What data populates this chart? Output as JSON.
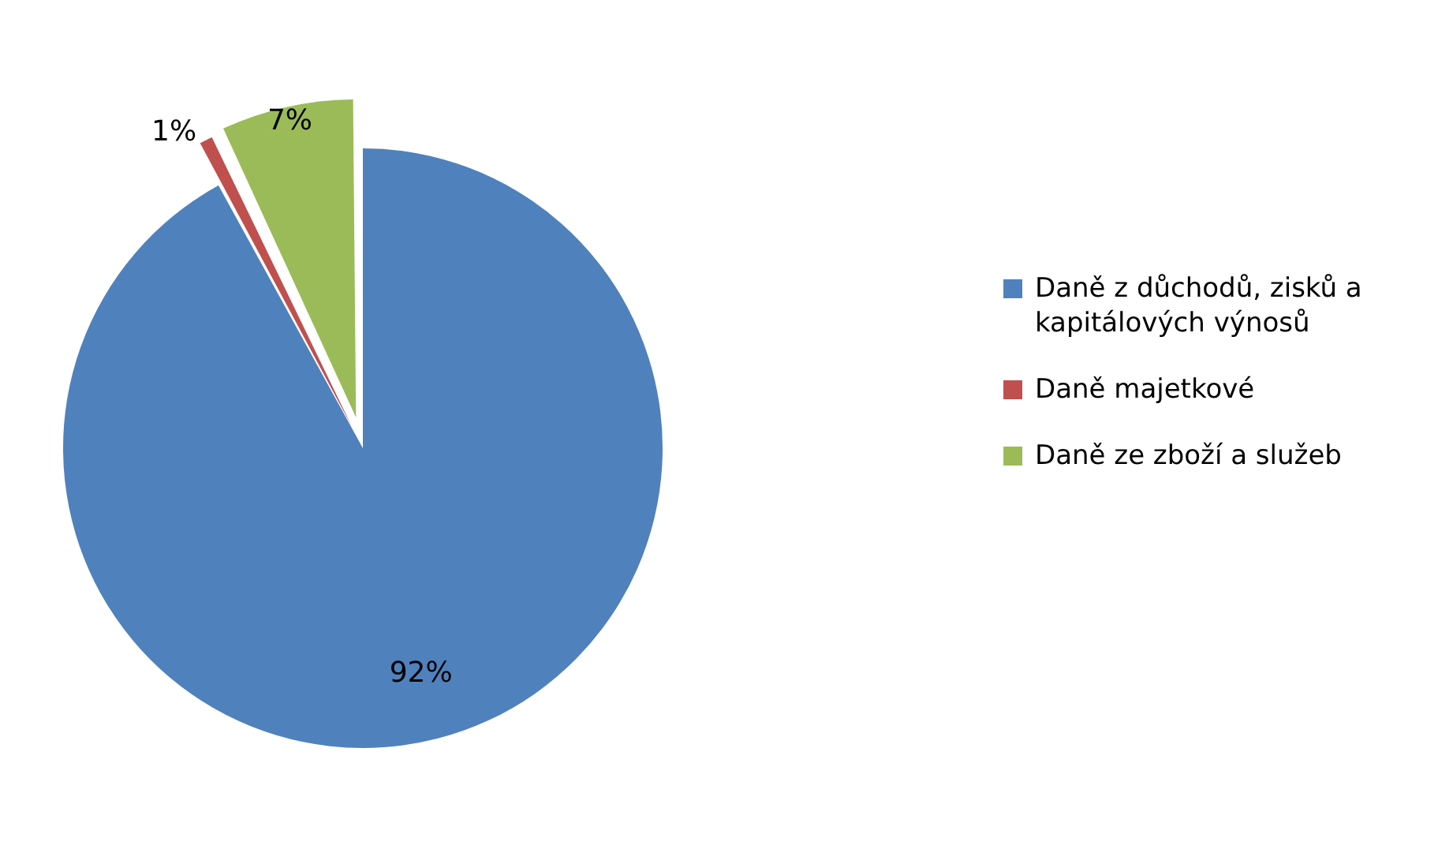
{
  "chart_data": {
    "type": "pie",
    "categories": [
      "Daně z důchodů, zisků a kapitálových výnosů",
      "Daně majetkové",
      "Daně ze zboží a služeb"
    ],
    "values": [
      92,
      1,
      7
    ],
    "colors": [
      "#4f81bd",
      "#c0504d",
      "#9bbb59"
    ],
    "value_labels": [
      "92%",
      "1%",
      "7%"
    ],
    "legend": "right"
  }
}
